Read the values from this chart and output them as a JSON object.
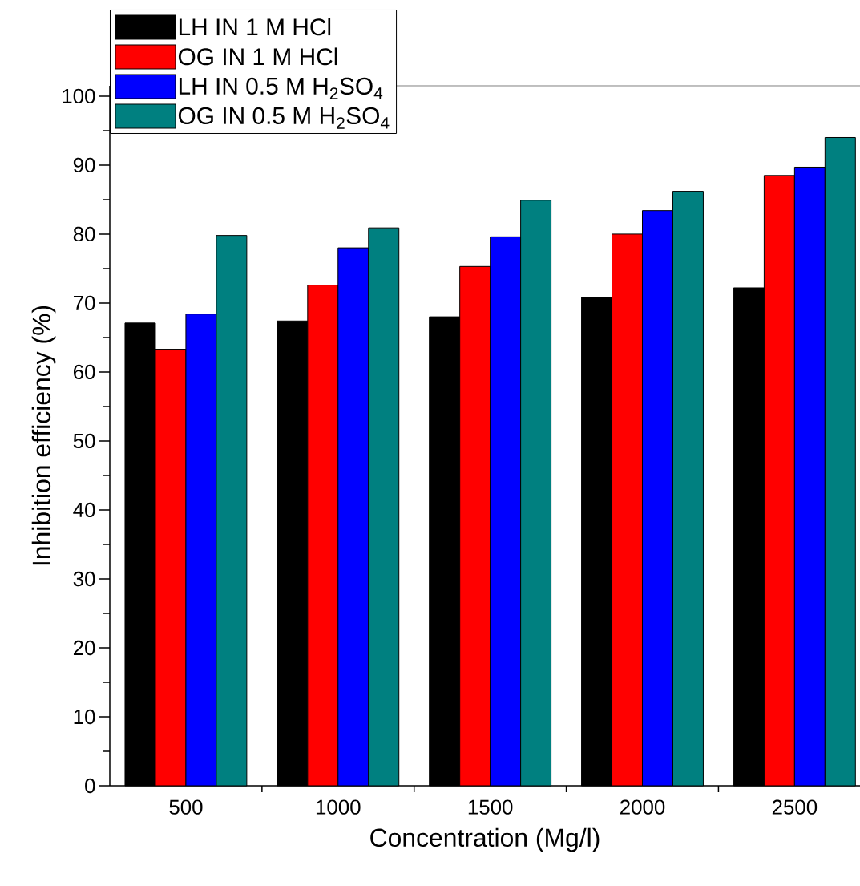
{
  "chart_data": {
    "type": "bar",
    "xlabel": "Concentration (Mg/l)",
    "ylabel": "Inhibition efficiency (%)",
    "categories": [
      "500",
      "1000",
      "1500",
      "2000",
      "2500"
    ],
    "series": [
      {
        "name": "LH IN 1 M HCl",
        "color": "#000000",
        "values": [
          67.1,
          67.4,
          68.0,
          70.8,
          72.2
        ]
      },
      {
        "name": "OG IN 1 M HCl",
        "color": "#ff0000",
        "values": [
          63.3,
          72.6,
          75.3,
          80.0,
          88.5
        ]
      },
      {
        "name": "LH IN 0.5 M H$_{2}$SO$_{4}$",
        "color": "#0000ff",
        "values": [
          68.4,
          78.0,
          79.6,
          83.4,
          89.7
        ]
      },
      {
        "name": "OG  IN 0.5 M H$_{2}$SO$_{4}$",
        "color": "#008080",
        "values": [
          79.8,
          80.9,
          84.9,
          86.2,
          94.0
        ]
      }
    ],
    "ylim": [
      0,
      101.5
    ],
    "yticks": [
      0,
      {
        "value": 5,
        "label": null
      },
      10,
      {
        "value": 15,
        "label": null
      },
      20,
      {
        "value": 25,
        "label": null
      },
      30,
      {
        "value": 35,
        "label": null
      },
      40,
      {
        "value": 45,
        "label": null
      },
      50,
      {
        "value": 55,
        "label": null
      },
      60,
      {
        "value": 65,
        "label": null
      },
      70,
      {
        "value": 75,
        "label": null
      },
      80,
      {
        "value": 85,
        "label": null
      },
      90,
      {
        "value": 95,
        "label": null
      },
      100
    ],
    "grid": false,
    "legend": "top left"
  }
}
